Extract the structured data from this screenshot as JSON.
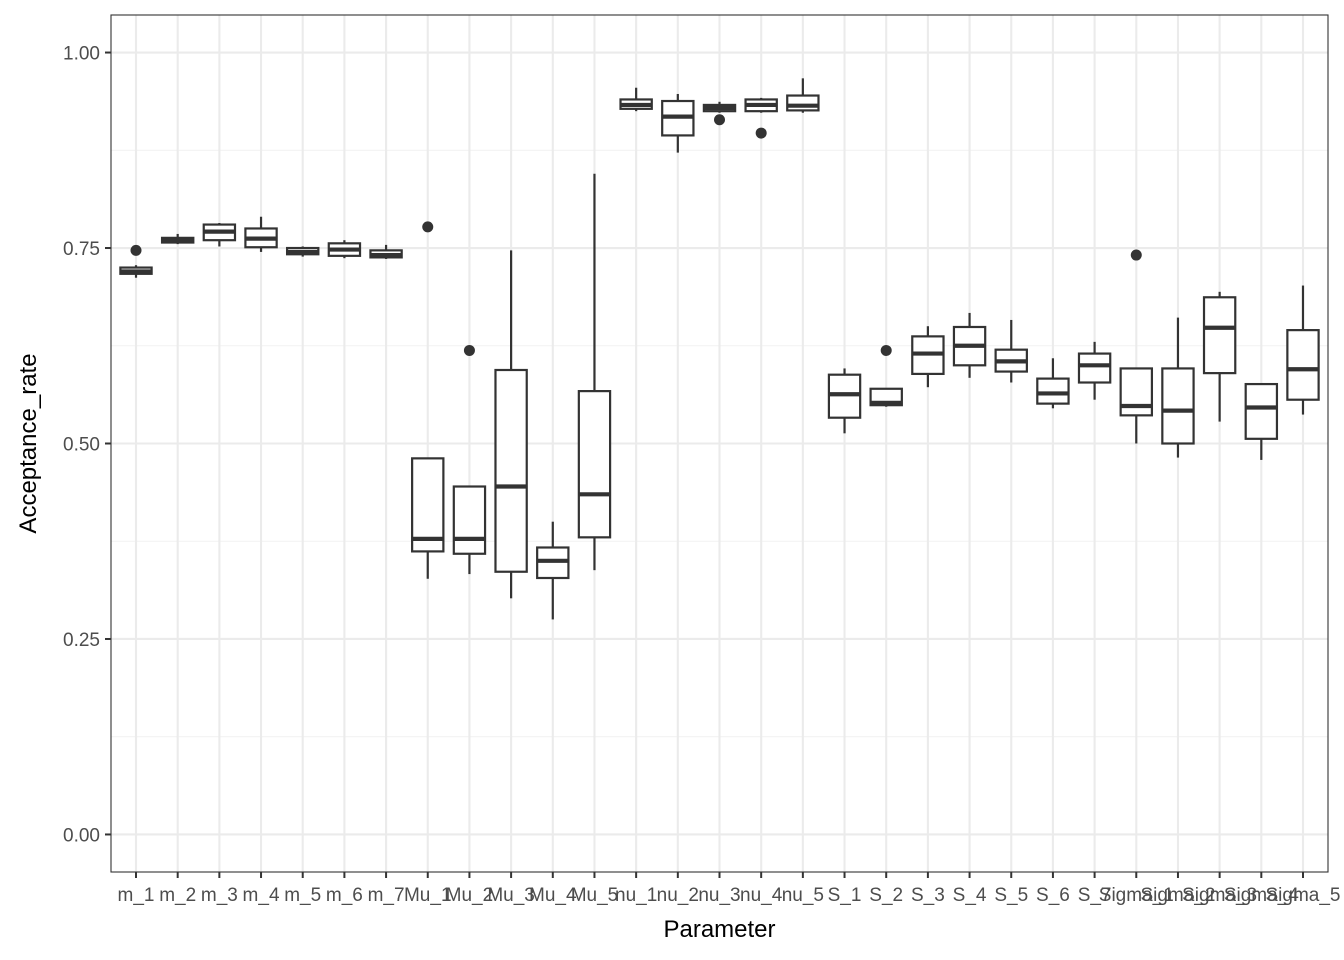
{
  "chart_data": {
    "type": "boxplot",
    "xlabel": "Parameter",
    "ylabel": "Acceptance_rate",
    "ylim": [
      -0.048,
      1.048
    ],
    "yticks": [
      0.0,
      0.25,
      0.5,
      0.75,
      1.0
    ],
    "ytick_labels": [
      "0.00",
      "0.25",
      "0.50",
      "0.75",
      "1.00"
    ],
    "grid": true,
    "categories": [
      "m_1",
      "m_2",
      "m_3",
      "m_4",
      "m_5",
      "m_6",
      "m_7",
      "Mu_1",
      "Mu_2",
      "Mu_3",
      "Mu_4",
      "Mu_5",
      "nu_1",
      "nu_2",
      "nu_3",
      "nu_4",
      "nu_5",
      "S_1",
      "S_2",
      "S_3",
      "S_4",
      "S_5",
      "S_6",
      "S_7",
      "Sigma_1",
      "Sigma_2",
      "Sigma_3",
      "Sigma_4",
      "Sigma_5"
    ],
    "boxes": [
      {
        "min": 0.712,
        "q1": 0.717,
        "median": 0.72,
        "q3": 0.725,
        "max": 0.728,
        "outliers": [
          0.747
        ]
      },
      {
        "min": 0.755,
        "q1": 0.757,
        "median": 0.76,
        "q3": 0.763,
        "max": 0.768,
        "outliers": []
      },
      {
        "min": 0.752,
        "q1": 0.76,
        "median": 0.771,
        "q3": 0.78,
        "max": 0.782,
        "outliers": []
      },
      {
        "min": 0.745,
        "q1": 0.751,
        "median": 0.762,
        "q3": 0.775,
        "max": 0.79,
        "outliers": []
      },
      {
        "min": 0.739,
        "q1": 0.742,
        "median": 0.745,
        "q3": 0.75,
        "max": 0.752,
        "outliers": []
      },
      {
        "min": 0.737,
        "q1": 0.74,
        "median": 0.748,
        "q3": 0.756,
        "max": 0.76,
        "outliers": []
      },
      {
        "min": 0.736,
        "q1": 0.738,
        "median": 0.741,
        "q3": 0.747,
        "max": 0.754,
        "outliers": []
      },
      {
        "min": 0.327,
        "q1": 0.362,
        "median": 0.378,
        "q3": 0.481,
        "max": 0.481,
        "outliers": [
          0.777
        ]
      },
      {
        "min": 0.333,
        "q1": 0.359,
        "median": 0.378,
        "q3": 0.445,
        "max": 0.445,
        "outliers": [
          0.619
        ]
      },
      {
        "min": 0.302,
        "q1": 0.336,
        "median": 0.445,
        "q3": 0.594,
        "max": 0.747,
        "outliers": []
      },
      {
        "min": 0.275,
        "q1": 0.328,
        "median": 0.35,
        "q3": 0.367,
        "max": 0.4,
        "outliers": []
      },
      {
        "min": 0.338,
        "q1": 0.38,
        "median": 0.435,
        "q3": 0.567,
        "max": 0.845,
        "outliers": []
      },
      {
        "min": 0.925,
        "q1": 0.928,
        "median": 0.933,
        "q3": 0.94,
        "max": 0.955,
        "outliers": []
      },
      {
        "min": 0.872,
        "q1": 0.894,
        "median": 0.918,
        "q3": 0.938,
        "max": 0.947,
        "outliers": []
      },
      {
        "min": 0.923,
        "q1": 0.925,
        "median": 0.929,
        "q3": 0.933,
        "max": 0.937,
        "outliers": [
          0.914
        ]
      },
      {
        "min": 0.923,
        "q1": 0.925,
        "median": 0.933,
        "q3": 0.94,
        "max": 0.942,
        "outliers": [
          0.897
        ]
      },
      {
        "min": 0.923,
        "q1": 0.926,
        "median": 0.932,
        "q3": 0.945,
        "max": 0.967,
        "outliers": []
      },
      {
        "min": 0.513,
        "q1": 0.533,
        "median": 0.563,
        "q3": 0.588,
        "max": 0.596,
        "outliers": []
      },
      {
        "min": 0.547,
        "q1": 0.549,
        "median": 0.552,
        "q3": 0.57,
        "max": 0.57,
        "outliers": [
          0.619
        ]
      },
      {
        "min": 0.572,
        "q1": 0.589,
        "median": 0.615,
        "q3": 0.637,
        "max": 0.65,
        "outliers": []
      },
      {
        "min": 0.584,
        "q1": 0.6,
        "median": 0.625,
        "q3": 0.649,
        "max": 0.667,
        "outliers": []
      },
      {
        "min": 0.578,
        "q1": 0.592,
        "median": 0.605,
        "q3": 0.62,
        "max": 0.658,
        "outliers": []
      },
      {
        "min": 0.545,
        "q1": 0.551,
        "median": 0.564,
        "q3": 0.583,
        "max": 0.609,
        "outliers": []
      },
      {
        "min": 0.556,
        "q1": 0.578,
        "median": 0.6,
        "q3": 0.615,
        "max": 0.63,
        "outliers": []
      },
      {
        "min": 0.5,
        "q1": 0.536,
        "median": 0.548,
        "q3": 0.596,
        "max": 0.596,
        "outliers": [
          0.741
        ]
      },
      {
        "min": 0.482,
        "q1": 0.5,
        "median": 0.542,
        "q3": 0.596,
        "max": 0.661,
        "outliers": []
      },
      {
        "min": 0.528,
        "q1": 0.59,
        "median": 0.648,
        "q3": 0.687,
        "max": 0.694,
        "outliers": []
      },
      {
        "min": 0.479,
        "q1": 0.506,
        "median": 0.546,
        "q3": 0.576,
        "max": 0.576,
        "outliers": []
      },
      {
        "min": 0.537,
        "q1": 0.556,
        "median": 0.595,
        "q3": 0.645,
        "max": 0.702,
        "outliers": []
      }
    ]
  }
}
